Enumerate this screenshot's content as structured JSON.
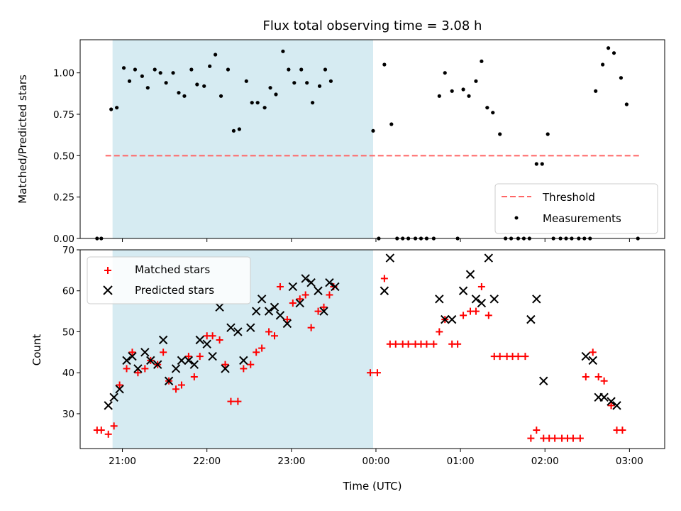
{
  "colors": {
    "shade": "#add8e6",
    "threshold": "#ff6666",
    "measurement": "#000000",
    "matched": "#ff0000",
    "predicted": "#000000"
  },
  "chart_data": [
    {
      "type": "scatter",
      "title": "Flux total observing time = 3.08 h",
      "xlabel": "",
      "ylabel": "Matched/Predicted stars",
      "ylim": [
        0,
        1.2
      ],
      "yticks": [
        "0.00",
        "0.25",
        "0.50",
        "0.75",
        "1.00"
      ],
      "xlim": [
        "20:30",
        "03:25"
      ],
      "shaded_region": {
        "start": "20:53",
        "end": "23:58"
      },
      "threshold": {
        "name": "Threshold",
        "y": 0.5,
        "x": [
          "20:48",
          "03:08"
        ]
      },
      "legend": {
        "placement": "lower right",
        "entries": [
          "Threshold",
          "Measurements"
        ]
      },
      "series": [
        {
          "name": "Measurements",
          "points": [
            [
              "20:42",
              0
            ],
            [
              "20:45",
              0
            ],
            [
              "20:52",
              0.78
            ],
            [
              "20:56",
              0.79
            ],
            [
              "21:01",
              1.03
            ],
            [
              "21:05",
              0.95
            ],
            [
              "21:09",
              1.02
            ],
            [
              "21:14",
              0.98
            ],
            [
              "21:18",
              0.91
            ],
            [
              "21:23",
              1.02
            ],
            [
              "21:27",
              1.0
            ],
            [
              "21:31",
              0.94
            ],
            [
              "21:36",
              1.0
            ],
            [
              "21:40",
              0.88
            ],
            [
              "21:44",
              0.86
            ],
            [
              "21:49",
              1.02
            ],
            [
              "21:53",
              0.93
            ],
            [
              "21:58",
              0.92
            ],
            [
              "22:02",
              1.04
            ],
            [
              "22:06",
              1.11
            ],
            [
              "22:10",
              0.86
            ],
            [
              "22:15",
              1.02
            ],
            [
              "22:19",
              0.65
            ],
            [
              "22:23",
              0.66
            ],
            [
              "22:28",
              0.95
            ],
            [
              "22:32",
              0.82
            ],
            [
              "22:36",
              0.82
            ],
            [
              "22:41",
              0.79
            ],
            [
              "22:45",
              0.91
            ],
            [
              "22:49",
              0.87
            ],
            [
              "22:54",
              1.13
            ],
            [
              "22:58",
              1.02
            ],
            [
              "23:02",
              0.94
            ],
            [
              "23:07",
              1.02
            ],
            [
              "23:11",
              0.94
            ],
            [
              "23:15",
              0.82
            ],
            [
              "23:20",
              0.92
            ],
            [
              "23:24",
              1.02
            ],
            [
              "23:28",
              0.95
            ],
            [
              "23:58",
              0.65
            ],
            [
              "00:02",
              0
            ],
            [
              "00:06",
              1.05
            ],
            [
              "00:11",
              0.69
            ],
            [
              "00:15",
              0
            ],
            [
              "00:19",
              0
            ],
            [
              "00:23",
              0
            ],
            [
              "00:28",
              0
            ],
            [
              "00:32",
              0
            ],
            [
              "00:36",
              0
            ],
            [
              "00:41",
              0
            ],
            [
              "00:45",
              0.86
            ],
            [
              "00:49",
              1.0
            ],
            [
              "00:54",
              0.89
            ],
            [
              "00:58",
              0
            ],
            [
              "01:02",
              0.9
            ],
            [
              "01:06",
              0.86
            ],
            [
              "01:11",
              0.95
            ],
            [
              "01:15",
              1.07
            ],
            [
              "01:19",
              0.79
            ],
            [
              "01:23",
              0.76
            ],
            [
              "01:28",
              0.63
            ],
            [
              "01:32",
              0
            ],
            [
              "01:36",
              0
            ],
            [
              "01:41",
              0
            ],
            [
              "01:45",
              0
            ],
            [
              "01:49",
              0
            ],
            [
              "01:54",
              0.45
            ],
            [
              "01:58",
              0.45
            ],
            [
              "02:02",
              0.63
            ],
            [
              "02:06",
              0
            ],
            [
              "02:11",
              0
            ],
            [
              "02:15",
              0
            ],
            [
              "02:19",
              0
            ],
            [
              "02:24",
              0
            ],
            [
              "02:28",
              0
            ],
            [
              "02:32",
              0
            ],
            [
              "02:36",
              0.89
            ],
            [
              "02:41",
              1.05
            ],
            [
              "02:45",
              1.15
            ],
            [
              "02:49",
              1.12
            ],
            [
              "02:54",
              0.97
            ],
            [
              "02:58",
              0.81
            ],
            [
              "03:06",
              0
            ]
          ]
        }
      ]
    },
    {
      "type": "scatter",
      "title": "",
      "xlabel": "Time (UTC)",
      "ylabel": "Count",
      "ylim": [
        21.5,
        70
      ],
      "yticks": [
        "30",
        "40",
        "50",
        "60",
        "70"
      ],
      "xlim": [
        "20:30",
        "03:25"
      ],
      "xticks": [
        "21:00",
        "22:00",
        "23:00",
        "00:00",
        "01:00",
        "02:00",
        "03:00"
      ],
      "shaded_region": {
        "start": "20:53",
        "end": "23:58"
      },
      "legend": {
        "placement": "upper left",
        "entries": [
          "Matched stars",
          "Predicted stars"
        ]
      },
      "series": [
        {
          "name": "Matched stars",
          "marker": "+",
          "points": [
            [
              "20:42",
              26
            ],
            [
              "20:45",
              26
            ],
            [
              "20:50",
              25
            ],
            [
              "20:54",
              27
            ],
            [
              "20:58",
              37
            ],
            [
              "21:03",
              41
            ],
            [
              "21:07",
              45
            ],
            [
              "21:11",
              40
            ],
            [
              "21:16",
              41
            ],
            [
              "21:20",
              43
            ],
            [
              "21:25",
              42
            ],
            [
              "21:29",
              45
            ],
            [
              "21:33",
              38
            ],
            [
              "21:38",
              36
            ],
            [
              "21:42",
              37
            ],
            [
              "21:47",
              44
            ],
            [
              "21:51",
              39
            ],
            [
              "21:55",
              44
            ],
            [
              "22:00",
              49
            ],
            [
              "22:04",
              49
            ],
            [
              "22:09",
              48
            ],
            [
              "22:13",
              42
            ],
            [
              "22:17",
              33
            ],
            [
              "22:22",
              33
            ],
            [
              "22:26",
              41
            ],
            [
              "22:31",
              42
            ],
            [
              "22:35",
              45
            ],
            [
              "22:39",
              46
            ],
            [
              "22:44",
              50
            ],
            [
              "22:48",
              49
            ],
            [
              "22:52",
              61
            ],
            [
              "22:57",
              53
            ],
            [
              "23:01",
              57
            ],
            [
              "23:06",
              58
            ],
            [
              "23:10",
              59
            ],
            [
              "23:14",
              51
            ],
            [
              "23:19",
              55
            ],
            [
              "23:23",
              56
            ],
            [
              "23:27",
              59
            ],
            [
              "23:30",
              61
            ],
            [
              "23:56",
              40
            ],
            [
              "24:01",
              40
            ],
            [
              "24:06",
              63
            ],
            [
              "24:10",
              47
            ],
            [
              "24:14",
              47
            ],
            [
              "24:19",
              47
            ],
            [
              "24:23",
              47
            ],
            [
              "24:28",
              47
            ],
            [
              "24:32",
              47
            ],
            [
              "24:36",
              47
            ],
            [
              "24:41",
              47
            ],
            [
              "24:45",
              50
            ],
            [
              "24:49",
              53
            ],
            [
              "24:54",
              47
            ],
            [
              "24:58",
              47
            ],
            [
              "25:02",
              54
            ],
            [
              "25:07",
              55
            ],
            [
              "25:11",
              55
            ],
            [
              "25:15",
              61
            ],
            [
              "25:20",
              54
            ],
            [
              "25:24",
              44
            ],
            [
              "25:28",
              44
            ],
            [
              "25:33",
              44
            ],
            [
              "25:37",
              44
            ],
            [
              "25:41",
              44
            ],
            [
              "25:46",
              44
            ],
            [
              "25:50",
              24
            ],
            [
              "25:54",
              26
            ],
            [
              "25:59",
              24
            ],
            [
              "26:03",
              24
            ],
            [
              "26:07",
              24
            ],
            [
              "26:12",
              24
            ],
            [
              "26:16",
              24
            ],
            [
              "26:20",
              24
            ],
            [
              "26:25",
              24
            ],
            [
              "26:29",
              39
            ],
            [
              "26:34",
              45
            ],
            [
              "26:38",
              39
            ],
            [
              "26:42",
              38
            ],
            [
              "26:47",
              32
            ],
            [
              "26:51",
              26
            ],
            [
              "26:55",
              26
            ]
          ]
        },
        {
          "name": "Predicted stars",
          "marker": "x",
          "points": [
            [
              "20:50",
              32
            ],
            [
              "20:54",
              34
            ],
            [
              "20:58",
              36
            ],
            [
              "21:03",
              43
            ],
            [
              "21:07",
              44
            ],
            [
              "21:11",
              41
            ],
            [
              "21:16",
              45
            ],
            [
              "21:20",
              43
            ],
            [
              "21:25",
              42
            ],
            [
              "21:29",
              48
            ],
            [
              "21:33",
              38
            ],
            [
              "21:38",
              41
            ],
            [
              "21:42",
              43
            ],
            [
              "21:47",
              43
            ],
            [
              "21:51",
              42
            ],
            [
              "21:55",
              48
            ],
            [
              "22:00",
              47
            ],
            [
              "22:04",
              44
            ],
            [
              "22:09",
              56
            ],
            [
              "22:13",
              41
            ],
            [
              "22:17",
              51
            ],
            [
              "22:22",
              50
            ],
            [
              "22:26",
              43
            ],
            [
              "22:31",
              51
            ],
            [
              "22:35",
              55
            ],
            [
              "22:39",
              58
            ],
            [
              "22:44",
              55
            ],
            [
              "22:48",
              56
            ],
            [
              "22:52",
              54
            ],
            [
              "22:57",
              52
            ],
            [
              "23:01",
              61
            ],
            [
              "23:06",
              57
            ],
            [
              "23:10",
              63
            ],
            [
              "23:14",
              62
            ],
            [
              "23:19",
              60
            ],
            [
              "23:23",
              55
            ],
            [
              "23:27",
              62
            ],
            [
              "23:31",
              61
            ],
            [
              "24:06",
              60
            ],
            [
              "24:10",
              68
            ],
            [
              "24:45",
              58
            ],
            [
              "24:49",
              53
            ],
            [
              "24:54",
              53
            ],
            [
              "25:02",
              60
            ],
            [
              "25:07",
              64
            ],
            [
              "25:11",
              58
            ],
            [
              "25:15",
              57
            ],
            [
              "25:20",
              68
            ],
            [
              "25:24",
              58
            ],
            [
              "25:50",
              53
            ],
            [
              "25:54",
              58
            ],
            [
              "25:59",
              38
            ],
            [
              "26:29",
              44
            ],
            [
              "26:34",
              43
            ],
            [
              "26:38",
              34
            ],
            [
              "26:42",
              34
            ],
            [
              "26:47",
              33
            ],
            [
              "26:51",
              32
            ]
          ]
        }
      ]
    }
  ]
}
